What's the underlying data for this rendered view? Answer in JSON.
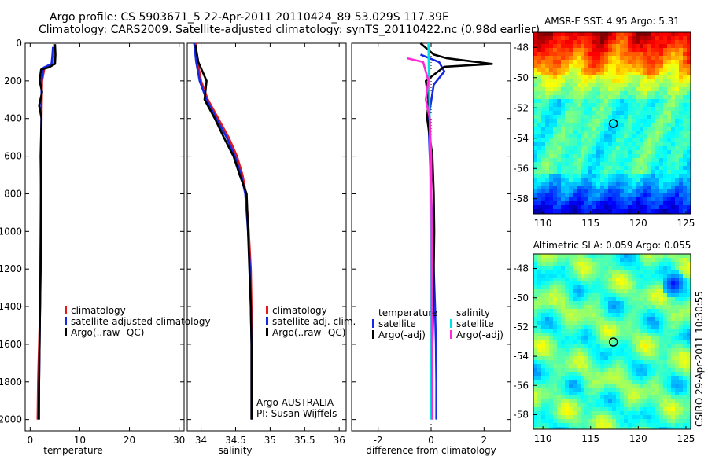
{
  "header": {
    "title_line1": "Argo profile: CS 5903671_5 22-Apr-2011 20110424_89 53.029S 117.39E",
    "title_line2": "Climatology: CARS2009. Satellite-adjusted climatology: synTS_20110422.nc (0.98d earlier)"
  },
  "credit": "CSIRO 29-Apr-2011 10:30:55",
  "colors": {
    "red": "#e31a1c",
    "blue": "#1428e6",
    "black": "#000000",
    "cyan": "#00e0e0",
    "magenta": "#ff2ad6"
  },
  "chart_data": [
    {
      "id": "temperature",
      "type": "line",
      "xlabel": "temperature",
      "ylabel": "",
      "xlim": [
        -1,
        31
      ],
      "ylim": [
        2060,
        0
      ],
      "xticks": [
        0,
        10,
        20,
        30
      ],
      "yticks": [
        0,
        200,
        400,
        600,
        800,
        1000,
        1200,
        1400,
        1600,
        1800,
        2000
      ],
      "legend": [
        "climatology",
        "satellite-adjusted climatology",
        "Argo(..raw -QC)"
      ],
      "legend_position": "bottom-right",
      "series": [
        {
          "name": "climatology",
          "color": "red",
          "x": [
            4.8,
            4.7,
            4.5,
            2.9,
            2.4,
            2.3,
            2.25,
            2.2,
            2.15,
            2.1,
            2.05,
            2.0,
            1.9,
            1.8,
            1.7,
            1.6,
            1.5
          ],
          "y": [
            20,
            60,
            110,
            130,
            200,
            400,
            600,
            800,
            1000,
            1200,
            1300,
            1400,
            1500,
            1600,
            1700,
            1800,
            2000
          ]
        },
        {
          "name": "satellite-adjusted climatology",
          "color": "blue",
          "x": [
            4.6,
            4.5,
            4.3,
            2.7,
            2.3,
            2.25,
            2.2,
            2.15,
            2.1,
            2.05,
            2.0,
            1.95,
            1.9,
            1.85,
            1.8,
            1.8
          ],
          "y": [
            20,
            60,
            110,
            130,
            200,
            400,
            600,
            800,
            1000,
            1200,
            1400,
            1500,
            1600,
            1700,
            1800,
            2000
          ]
        },
        {
          "name": "Argo(..raw -QC)",
          "color": "black",
          "x": [
            5.0,
            5.1,
            5.0,
            3.8,
            2.2,
            1.9,
            2.4,
            1.8,
            2.3,
            2.1,
            2.2,
            2.15,
            2.1,
            2.0,
            1.9,
            1.8,
            1.7
          ],
          "y": [
            5,
            60,
            110,
            128,
            140,
            200,
            260,
            330,
            400,
            600,
            800,
            1000,
            1200,
            1400,
            1600,
            1800,
            2000
          ]
        }
      ]
    },
    {
      "id": "salinity",
      "type": "line",
      "xlabel": "salinity",
      "ylabel": "",
      "xlim": [
        33.8,
        36.1
      ],
      "ylim": [
        2060,
        0
      ],
      "xticks": [
        34,
        34.5,
        35,
        35.5,
        36
      ],
      "xtick_labels": [
        "34",
        "34.5",
        "35",
        "35.5",
        "36"
      ],
      "legend": [
        "climatology",
        "satellite adj. clim.",
        "Argo(..raw -QC)"
      ],
      "legend_position": "bottom-right",
      "annotation": [
        "Argo AUSTRALIA",
        "PI: Susan Wijffels"
      ],
      "series": [
        {
          "name": "climatology",
          "color": "red",
          "x": [
            33.92,
            33.95,
            34.0,
            34.1,
            34.25,
            34.4,
            34.52,
            34.6,
            34.65,
            34.69,
            34.72,
            34.73,
            34.74,
            34.74,
            34.74
          ],
          "y": [
            0,
            100,
            200,
            300,
            400,
            500,
            600,
            700,
            800,
            1000,
            1200,
            1400,
            1600,
            1800,
            2000
          ]
        },
        {
          "name": "satellite adj. clim.",
          "color": "blue",
          "x": [
            33.9,
            33.93,
            33.98,
            34.08,
            34.22,
            34.37,
            34.49,
            34.58,
            34.64,
            34.68,
            34.71,
            34.72,
            34.73,
            34.73,
            34.73
          ],
          "y": [
            0,
            100,
            200,
            300,
            400,
            500,
            600,
            700,
            800,
            1000,
            1200,
            1400,
            1600,
            1800,
            2000
          ]
        },
        {
          "name": "Argo(..raw -QC)",
          "color": "black",
          "x": [
            33.92,
            33.96,
            34.08,
            34.05,
            34.2,
            34.33,
            34.47,
            34.56,
            34.66,
            34.68,
            34.7,
            34.72,
            34.73,
            34.73,
            34.73
          ],
          "y": [
            10,
            100,
            200,
            300,
            400,
            500,
            600,
            700,
            800,
            1000,
            1200,
            1400,
            1600,
            1800,
            2000
          ]
        }
      ]
    },
    {
      "id": "difference",
      "type": "line",
      "xlabel": "difference from climatology",
      "ylabel": "",
      "xlim": [
        -3,
        3
      ],
      "ylim": [
        2060,
        0
      ],
      "xticks": [
        -2,
        0,
        2
      ],
      "legend_position": "bottom",
      "legend_groups": [
        {
          "title": "temperature",
          "items": [
            "satellite",
            "Argo(-adj)"
          ]
        },
        {
          "title": "salinity",
          "items": [
            "satellite",
            "Argo(-adj)"
          ]
        }
      ],
      "series": [
        {
          "name": "temperature satellite",
          "color": "blue",
          "x": [
            -0.4,
            0.3,
            0.5,
            0.1,
            -0.1,
            -0.05,
            0.0,
            0.05,
            0.1,
            0.15,
            0.18,
            0.2,
            0.2
          ],
          "y": [
            60,
            100,
            150,
            220,
            400,
            600,
            800,
            1000,
            1200,
            1400,
            1600,
            1800,
            2000
          ]
        },
        {
          "name": "temperature Argo(-adj)",
          "color": "black",
          "x": [
            -0.4,
            0.1,
            0.6,
            2.3,
            0.5,
            -0.2,
            -0.1,
            -0.15,
            0.05,
            0.1,
            0.12,
            0.1,
            0.08,
            0.05,
            0.05
          ],
          "y": [
            0,
            60,
            80,
            110,
            125,
            200,
            300,
            400,
            600,
            800,
            1000,
            1200,
            1400,
            1600,
            2000
          ]
        },
        {
          "name": "salinity satellite",
          "color": "cyan",
          "x": [
            -0.1,
            -0.08,
            -0.05,
            -0.03,
            -0.02,
            -0.01,
            0.0
          ],
          "y": [
            0,
            200,
            400,
            700,
            1000,
            1500,
            2000
          ]
        },
        {
          "name": "salinity Argo(-adj)",
          "color": "magenta",
          "x": [
            -0.9,
            -0.3,
            -0.1,
            -0.2,
            -0.05,
            0.0,
            0.02,
            0.03,
            0.05
          ],
          "y": [
            80,
            100,
            200,
            300,
            400,
            600,
            1000,
            1500,
            2000
          ]
        }
      ]
    },
    {
      "id": "sst_map",
      "type": "heatmap",
      "title": "AMSR-E SST: 4.95 Argo: 5.31",
      "xlim": [
        109,
        125.5
      ],
      "ylim": [
        -59,
        -47
      ],
      "xticks": [
        110,
        115,
        120,
        125
      ],
      "yticks": [
        -48,
        -50,
        -52,
        -54,
        -56,
        -58
      ],
      "marker": {
        "lon": 117.39,
        "lat": -53.03
      }
    },
    {
      "id": "sla_map",
      "type": "heatmap",
      "title": "Altimetric SLA: 0.059 Argo: 0.055",
      "xlim": [
        109,
        125.5
      ],
      "ylim": [
        -59,
        -47
      ],
      "xticks": [
        110,
        115,
        120,
        125
      ],
      "yticks": [
        -48,
        -50,
        -52,
        -54,
        -56,
        -58
      ],
      "marker": {
        "lon": 117.39,
        "lat": -53.03
      }
    }
  ]
}
